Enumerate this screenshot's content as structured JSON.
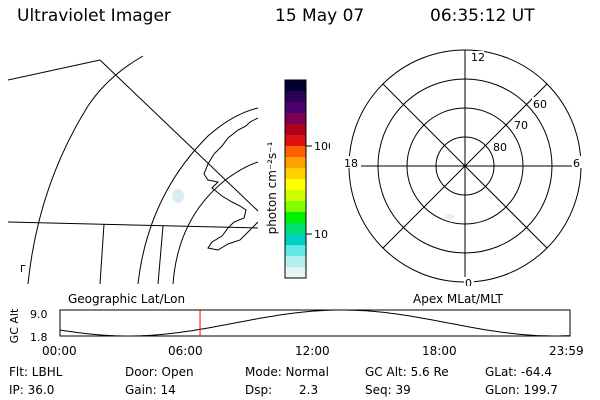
{
  "header": {
    "instrument": "Ultraviolet Imager",
    "date": "15 May 07",
    "time": "06:35:12 UT"
  },
  "colorbar": {
    "unit_label": "photon cm⁻²s⁻¹",
    "tick_labels": [
      "100",
      "10"
    ],
    "colors": [
      "#000033",
      "#2a0055",
      "#4a0070",
      "#7a0050",
      "#b00020",
      "#e01010",
      "#ff6000",
      "#ffa000",
      "#ffd000",
      "#ffff00",
      "#ccff00",
      "#80ff00",
      "#00f000",
      "#00e070",
      "#00d0c0",
      "#60e8e8",
      "#b0f0f0",
      "#e8f4f4"
    ]
  },
  "geo_map": {
    "caption": "Geographic Lat/Lon",
    "corner_mark": "Г"
  },
  "polar_plot": {
    "caption": "Apex MLat/MLT",
    "mlt_labels": {
      "top": "12",
      "bottom": "0",
      "left": "18",
      "right": "6"
    },
    "lat_labels": [
      "60",
      "70",
      "80"
    ]
  },
  "altitude_plot": {
    "axis_label": "GC Alt",
    "y_ticks": [
      "9.0",
      "1.8"
    ],
    "x_ticks": [
      "00:00",
      "06:00",
      "12:00",
      "18:00",
      "23:59"
    ],
    "current_time_marker_hours": 6.59,
    "line_color": "#000000",
    "marker_color": "#ff0000"
  },
  "info": {
    "col1": [
      "Flt: LBHL",
      "IP: 36.0"
    ],
    "col2": [
      "Door: Open",
      "Gain: 14"
    ],
    "col3a": [
      "Mode: Normal",
      "Dsp:"
    ],
    "col3b": [
      "",
      "2.3"
    ],
    "col4": [
      "GC Alt: 5.6 Re",
      "Seq: 39"
    ],
    "col5": [
      "GLat: -64.4",
      "GLon: 199.7"
    ]
  }
}
